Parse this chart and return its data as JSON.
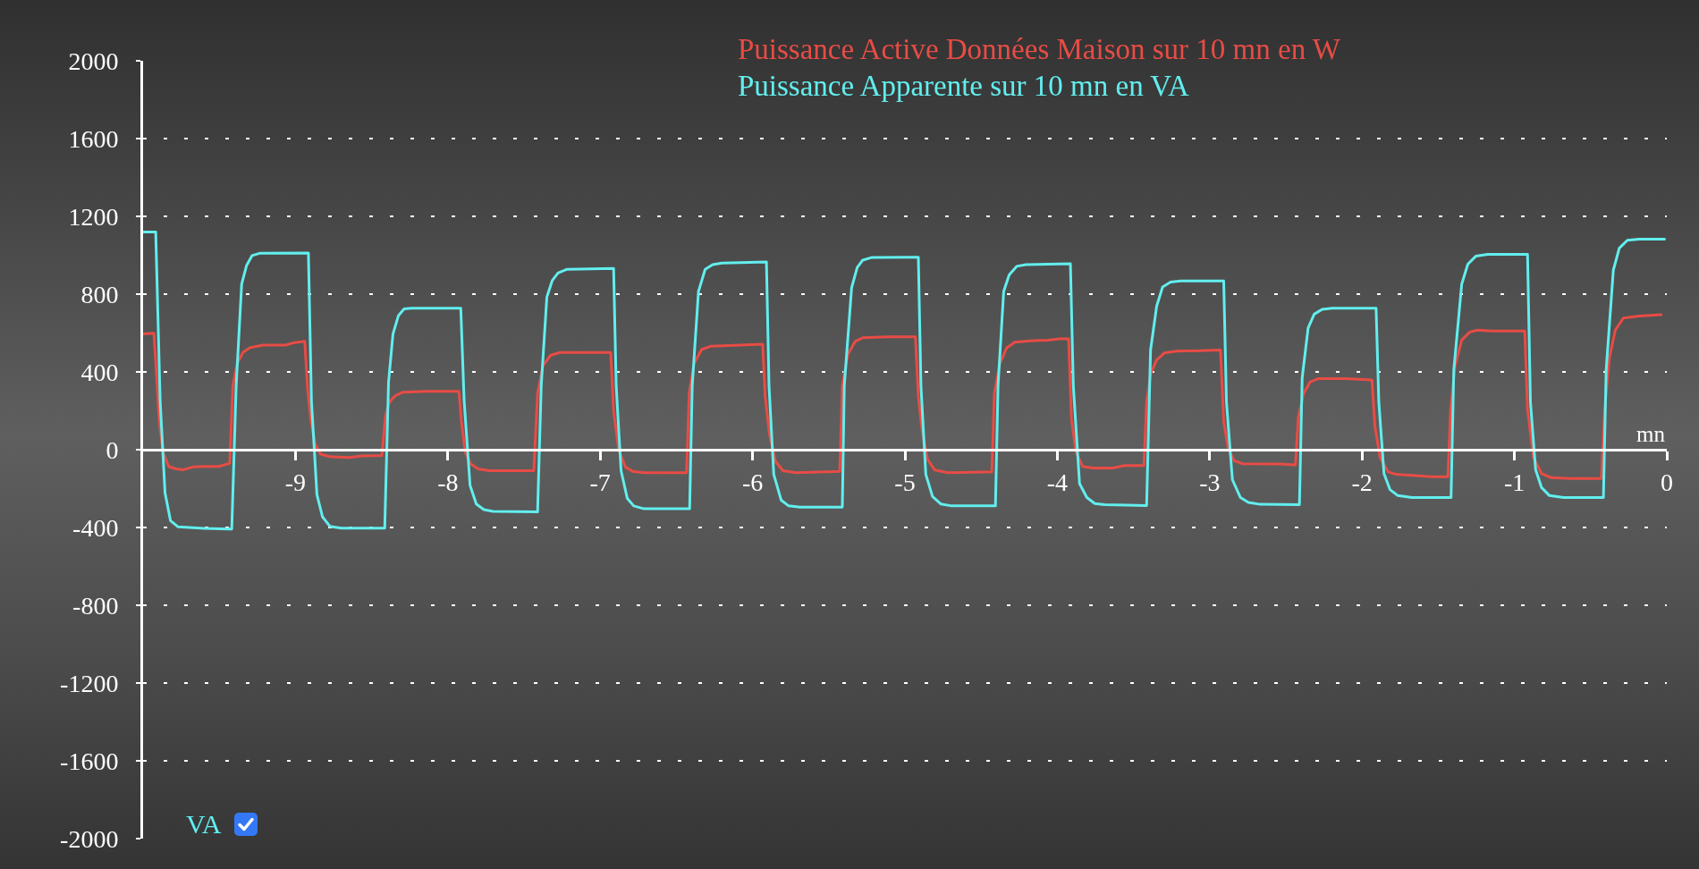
{
  "chart_data": {
    "type": "line",
    "xlabel": "mn",
    "annotations": [
      "VA"
    ],
    "legend": "top",
    "grid": "y",
    "line_style": "solid",
    "xlim": [
      -10,
      0
    ],
    "xticks": [
      -9,
      -8,
      -7,
      -6,
      -5,
      -4,
      -3,
      -2,
      -1,
      0
    ],
    "ylim": [
      -2000,
      2000
    ],
    "yticks": [
      2000,
      1600,
      1200,
      800,
      400,
      0,
      -400,
      -800,
      -1200,
      -1600,
      -2000
    ],
    "series": [
      {
        "name": "Puissance Active Données Maison sur 10 mn en W",
        "color": "#e84c45",
        "x": [
          -10.0,
          -9.929,
          -9.912,
          -9.893,
          -9.869,
          -9.832,
          -9.783,
          -9.735,
          -9.674,
          -9.601,
          -9.504,
          -9.431,
          -9.411,
          -9.382,
          -9.345,
          -9.297,
          -9.212,
          -9.066,
          -9.005,
          -8.939,
          -8.92,
          -8.9,
          -8.871,
          -8.835,
          -8.774,
          -8.652,
          -8.567,
          -8.433,
          -8.409,
          -8.384,
          -8.348,
          -8.299,
          -8.141,
          -7.927,
          -7.91,
          -7.886,
          -7.849,
          -7.8,
          -7.727,
          -7.436,
          -7.411,
          -7.375,
          -7.326,
          -7.265,
          -6.931,
          -6.912,
          -6.878,
          -6.834,
          -6.785,
          -6.712,
          -6.433,
          -6.416,
          -6.384,
          -6.335,
          -6.275,
          -6.08,
          -5.934,
          -5.917,
          -5.89,
          -5.849,
          -5.8,
          -5.715,
          -5.428,
          -5.411,
          -5.375,
          -5.326,
          -5.277,
          -5.107,
          -4.931,
          -4.912,
          -4.888,
          -4.851,
          -4.803,
          -4.717,
          -4.43,
          -4.413,
          -4.377,
          -4.333,
          -4.279,
          -4.157,
          -4.06,
          -3.987,
          -3.926,
          -3.907,
          -3.878,
          -3.833,
          -3.767,
          -3.636,
          -3.558,
          -3.432,
          -3.414,
          -3.388,
          -3.348,
          -3.296,
          -3.217,
          -3.06,
          -2.929,
          -2.908,
          -2.877,
          -2.838,
          -2.785,
          -2.537,
          -2.437,
          -2.419,
          -2.385,
          -2.34,
          -2.288,
          -2.118,
          -1.935,
          -1.916,
          -1.882,
          -1.83,
          -1.778,
          -1.647,
          -1.542,
          -1.437,
          -1.419,
          -1.39,
          -1.346,
          -1.293,
          -1.241,
          -1.15,
          -0.932,
          -0.914,
          -0.875,
          -0.822,
          -0.757,
          -0.626,
          -0.43,
          -0.408,
          -0.377,
          -0.338,
          -0.285,
          -0.181,
          -0.037
        ],
        "values": [
          595,
          599,
          386,
          139,
          -13,
          -86,
          -99,
          -103,
          -89,
          -86,
          -86,
          -70,
          329,
          443,
          500,
          525,
          538,
          538,
          551,
          557,
          310,
          158,
          29,
          -23,
          -36,
          -40,
          -32,
          -30,
          177,
          243,
          276,
          295,
          300,
          300,
          139,
          -13,
          -74,
          -99,
          -108,
          -108,
          291,
          433,
          485,
          500,
          500,
          196,
          -4,
          -89,
          -112,
          -118,
          -118,
          291,
          443,
          515,
          532,
          538,
          542,
          272,
          82,
          -61,
          -108,
          -118,
          -112,
          329,
          490,
          557,
          576,
          580,
          580,
          272,
          101,
          -51,
          -105,
          -118,
          -114,
          291,
          443,
          523,
          553,
          561,
          563,
          570,
          570,
          158,
          -13,
          -86,
          -94,
          -94,
          -82,
          -82,
          246,
          390,
          462,
          498,
          507,
          509,
          513,
          144,
          0,
          -57,
          -72,
          -74,
          -78,
          164,
          287,
          349,
          365,
          365,
          359,
          123,
          -41,
          -113,
          -127,
          -133,
          -139,
          -139,
          205,
          431,
          564,
          605,
          615,
          610,
          610,
          205,
          -41,
          -123,
          -144,
          -148,
          -148,
          205,
          472,
          615,
          677,
          687,
          694
        ]
      },
      {
        "name": "Puissance Apparente sur 10 mn en VA",
        "color": "#62eeee",
        "x": [
          -10.0,
          -9.917,
          -9.888,
          -9.856,
          -9.82,
          -9.77,
          -9.6,
          -9.418,
          -9.389,
          -9.353,
          -9.321,
          -9.285,
          -9.236,
          -8.915,
          -8.895,
          -8.859,
          -8.822,
          -8.774,
          -8.7,
          -8.414,
          -8.389,
          -8.36,
          -8.324,
          -8.287,
          -8.238,
          -7.915,
          -7.893,
          -7.854,
          -7.813,
          -7.764,
          -7.703,
          -7.411,
          -7.387,
          -7.35,
          -7.314,
          -7.277,
          -7.217,
          -6.912,
          -6.895,
          -6.863,
          -6.822,
          -6.78,
          -6.712,
          -6.413,
          -6.396,
          -6.355,
          -6.311,
          -6.262,
          -6.201,
          -5.909,
          -5.892,
          -5.861,
          -5.812,
          -5.763,
          -5.69,
          -5.411,
          -5.398,
          -5.35,
          -5.313,
          -5.277,
          -5.216,
          -4.912,
          -4.895,
          -4.863,
          -4.819,
          -4.765,
          -4.693,
          -4.406,
          -4.389,
          -4.352,
          -4.316,
          -4.267,
          -4.206,
          -3.914,
          -3.895,
          -3.854,
          -3.806,
          -3.754,
          -3.689,
          -3.414,
          -3.388,
          -3.348,
          -3.309,
          -3.257,
          -3.191,
          -2.908,
          -2.89,
          -2.851,
          -2.798,
          -2.746,
          -2.668,
          -2.411,
          -2.393,
          -2.354,
          -2.314,
          -2.262,
          -2.196,
          -1.908,
          -1.89,
          -1.856,
          -1.817,
          -1.765,
          -1.673,
          -1.416,
          -1.398,
          -1.346,
          -1.306,
          -1.254,
          -1.175,
          -0.914,
          -0.895,
          -0.861,
          -0.822,
          -0.77,
          -0.678,
          -0.416,
          -0.398,
          -0.351,
          -0.312,
          -0.259,
          -0.181,
          -0.015
        ],
        "values": [
          1120,
          1120,
          253,
          -222,
          -365,
          -397,
          -405,
          -408,
          329,
          852,
          947,
          998,
          1010,
          1012,
          253,
          -232,
          -346,
          -394,
          -403,
          -403,
          348,
          595,
          690,
          724,
          728,
          728,
          253,
          -184,
          -279,
          -308,
          -317,
          -320,
          329,
          785,
          871,
          909,
          928,
          932,
          329,
          -108,
          -251,
          -289,
          -304,
          -304,
          329,
          814,
          928,
          952,
          960,
          966,
          329,
          -127,
          -260,
          -289,
          -295,
          -295,
          329,
          833,
          937,
          975,
          989,
          990,
          329,
          -127,
          -241,
          -279,
          -289,
          -289,
          329,
          814,
          899,
          943,
          952,
          956,
          329,
          -175,
          -246,
          -277,
          -283,
          -287,
          513,
          738,
          837,
          862,
          868,
          868,
          246,
          -154,
          -246,
          -271,
          -281,
          -283,
          369,
          626,
          697,
          722,
          728,
          728,
          246,
          -123,
          -205,
          -236,
          -246,
          -246,
          410,
          851,
          954,
          995,
          1005,
          1005,
          246,
          -103,
          -195,
          -236,
          -246,
          -246,
          410,
          923,
          1036,
          1077,
          1083,
          1083
        ]
      }
    ]
  }
}
